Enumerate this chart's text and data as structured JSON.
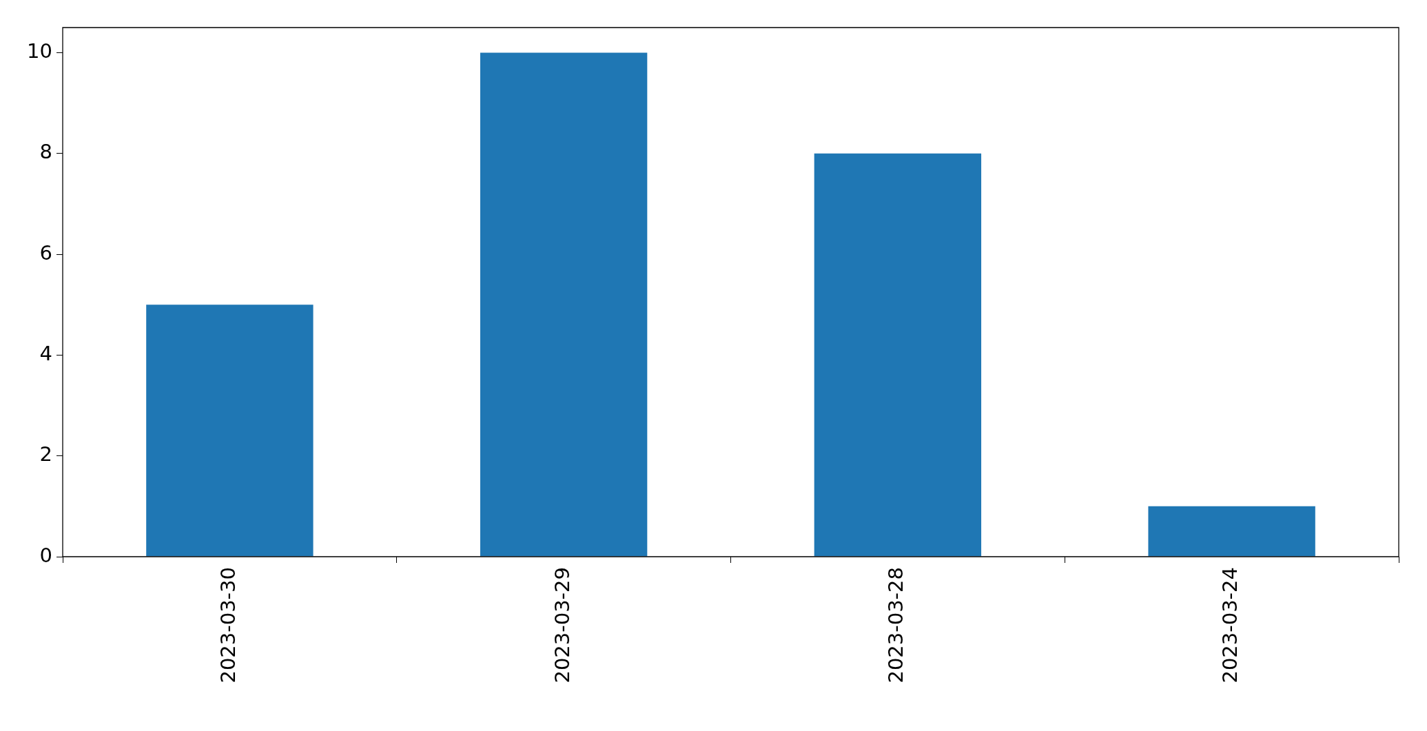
{
  "chart_data": {
    "type": "bar",
    "categories": [
      "2023-03-30",
      "2023-03-29",
      "2023-03-28",
      "2023-03-24"
    ],
    "values": [
      5,
      10,
      8,
      1
    ],
    "color": "#1f77b4",
    "ylim": [
      0,
      10.5
    ],
    "yticks": [
      0,
      2,
      4,
      6,
      8,
      10
    ],
    "grid": false,
    "legend": false
  }
}
